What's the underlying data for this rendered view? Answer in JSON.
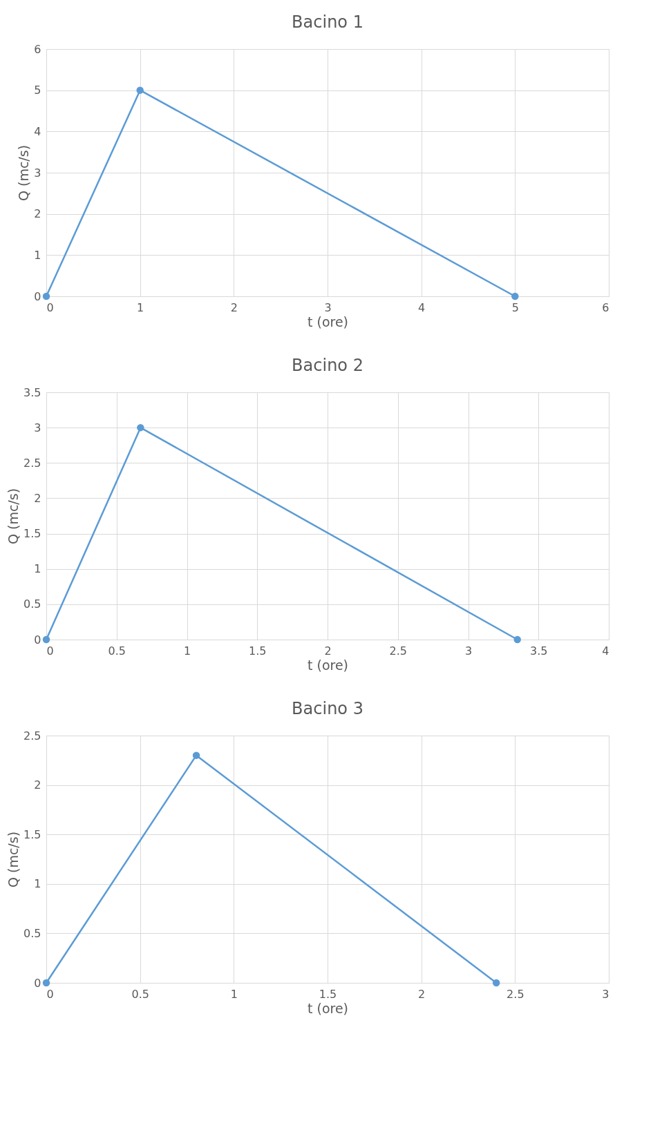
{
  "chart_data": [
    {
      "type": "line",
      "title": "Bacino 1",
      "xlabel": "t (ore)",
      "ylabel": "Q (mc/s)",
      "x": [
        0,
        1,
        5
      ],
      "series": [
        {
          "color": "#5b9bd5",
          "values": [
            0,
            5,
            0
          ]
        }
      ],
      "xlim": [
        0,
        6
      ],
      "xticks": [
        0,
        1,
        2,
        3,
        4,
        5,
        6
      ],
      "ylim": [
        0,
        6
      ],
      "yticks": [
        0,
        1,
        2,
        3,
        4,
        5,
        6
      ],
      "grid": true,
      "marker": "circle"
    },
    {
      "type": "line",
      "title": "Bacino 2",
      "xlabel": "t (ore)",
      "ylabel": "Q (mc/s)",
      "x": [
        0,
        0.67,
        3.35
      ],
      "series": [
        {
          "color": "#5b9bd5",
          "values": [
            0,
            3,
            0
          ]
        }
      ],
      "xlim": [
        0,
        4
      ],
      "xticks": [
        0,
        0.5,
        1,
        1.5,
        2,
        2.5,
        3,
        3.5,
        4
      ],
      "ylim": [
        0,
        3.5
      ],
      "yticks": [
        0,
        0.5,
        1,
        1.5,
        2,
        2.5,
        3,
        3.5
      ],
      "grid": true,
      "marker": "circle"
    },
    {
      "type": "line",
      "title": "Bacino 3",
      "xlabel": "t (ore)",
      "ylabel": "Q (mc/s)",
      "x": [
        0,
        0.8,
        2.4
      ],
      "series": [
        {
          "color": "#5b9bd5",
          "values": [
            0,
            2.3,
            0
          ]
        }
      ],
      "xlim": [
        0,
        3
      ],
      "xticks": [
        0,
        0.5,
        1,
        1.5,
        2,
        2.5,
        3
      ],
      "ylim": [
        0,
        2.5
      ],
      "yticks": [
        0,
        0.5,
        1,
        1.5,
        2,
        2.5
      ],
      "grid": true,
      "marker": "circle"
    }
  ]
}
